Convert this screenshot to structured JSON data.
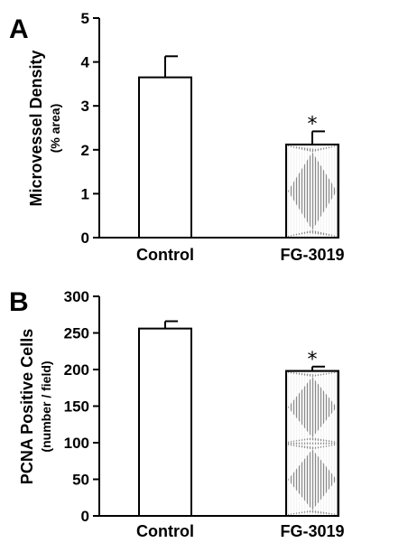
{
  "chart_data": [
    {
      "type": "bar",
      "panel_label": "A",
      "categories": [
        "Control",
        "FG-3019"
      ],
      "values": [
        3.65,
        2.12
      ],
      "errors": [
        0.48,
        0.3
      ],
      "significance": [
        "",
        "*"
      ],
      "ylabel": "Microvessel Density",
      "ylabel_sub": "(% area)",
      "ylim": [
        0,
        5
      ],
      "yticks": [
        0,
        1,
        2,
        3,
        4,
        5
      ],
      "grid": false,
      "colors": {
        "Control": "#ffffff",
        "FG-3019": "#b8b8b8"
      }
    },
    {
      "type": "bar",
      "panel_label": "B",
      "categories": [
        "Control",
        "FG-3019"
      ],
      "values": [
        256,
        198
      ],
      "errors": [
        10,
        6
      ],
      "significance": [
        "",
        "*"
      ],
      "ylabel": "PCNA Positive Cells",
      "ylabel_sub": "(number / field)",
      "ylim": [
        0,
        300
      ],
      "yticks": [
        0,
        50,
        100,
        150,
        200,
        250,
        300
      ],
      "grid": false,
      "colors": {
        "Control": "#ffffff",
        "FG-3019": "#b8b8b8"
      }
    }
  ]
}
